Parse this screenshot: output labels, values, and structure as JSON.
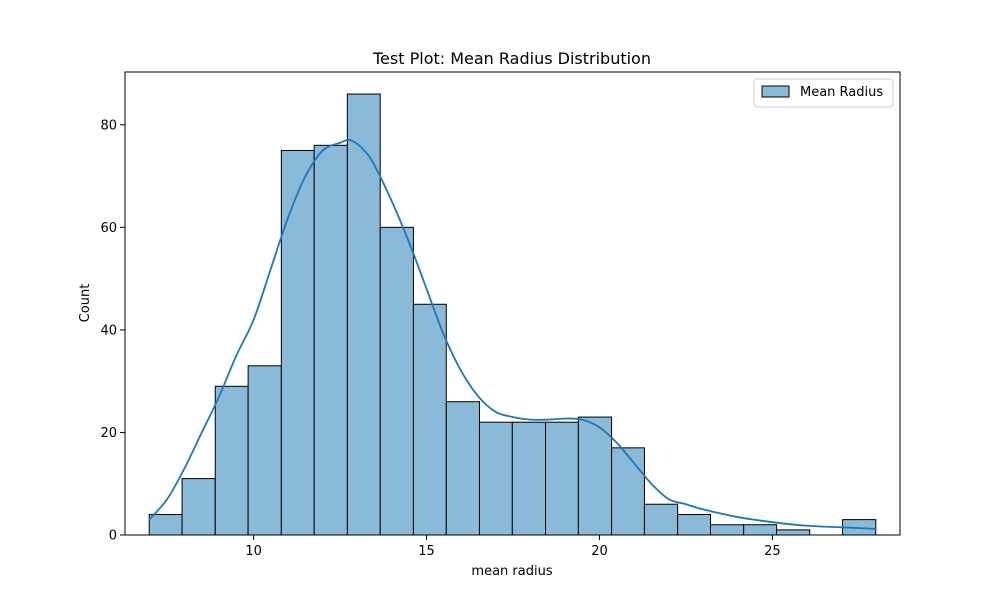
{
  "chart_data": {
    "type": "bar",
    "title": "Test Plot: Mean Radius Distribution",
    "xlabel": "mean radius",
    "ylabel": "Count",
    "bin_edges": [
      6.98,
      7.93,
      8.89,
      9.84,
      10.8,
      11.75,
      12.71,
      13.66,
      14.62,
      15.57,
      16.53,
      17.48,
      18.44,
      19.39,
      20.35,
      21.3,
      22.26,
      23.21,
      24.17,
      25.12,
      26.08,
      27.03,
      27.99
    ],
    "counts": [
      4,
      11,
      29,
      33,
      75,
      76,
      86,
      60,
      45,
      26,
      22,
      22,
      22,
      23,
      17,
      6,
      4,
      2,
      2,
      1,
      0,
      3
    ],
    "kde": {
      "x": [
        6.98,
        7.5,
        8,
        8.5,
        9,
        9.5,
        10,
        10.5,
        11,
        11.5,
        12,
        12.5,
        12.8,
        13.2,
        13.5,
        14,
        14.5,
        15,
        15.5,
        16,
        16.5,
        17,
        17.5,
        18,
        18.5,
        19,
        19.5,
        20,
        20.5,
        21,
        21.5,
        22,
        22.5,
        23,
        24,
        25,
        26,
        27,
        27.99
      ],
      "y": [
        3,
        7,
        13,
        20,
        27,
        35,
        42,
        52,
        62,
        70,
        75,
        76.5,
        77,
        75,
        72,
        65,
        57,
        48,
        39,
        32,
        27,
        24,
        23,
        22.5,
        22.5,
        22.7,
        22.5,
        21,
        18,
        14,
        10,
        7,
        6,
        5,
        3.5,
        2.5,
        1.8,
        1.5,
        1.2
      ]
    },
    "xlim": [
      6.28,
      28.69
    ],
    "ylim": [
      0,
      90.3
    ],
    "xticks": [
      10,
      15,
      20,
      25
    ],
    "yticks": [
      0,
      20,
      40,
      60,
      80
    ],
    "grid": false,
    "legend": {
      "position": "top-right",
      "entries": [
        "Mean Radius"
      ]
    },
    "colors": {
      "bar_fill": "#8bbad9",
      "bar_edge": "#000000",
      "kde_line": "#1f77b4"
    }
  }
}
